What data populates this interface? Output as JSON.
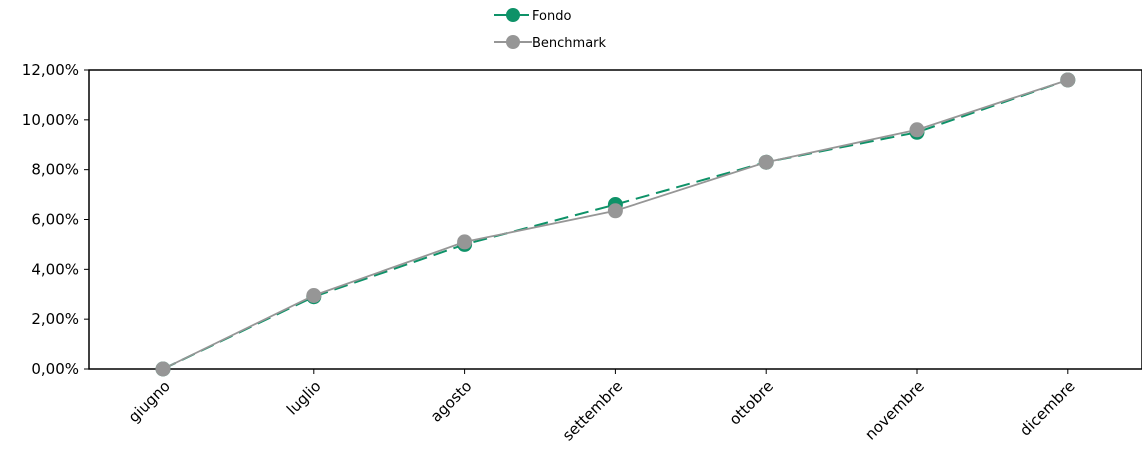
{
  "chart_data": {
    "type": "line",
    "categories": [
      "giugno",
      "luglio",
      "agosto",
      "settembre",
      "ottobre",
      "novembre",
      "dicembre"
    ],
    "series": [
      {
        "name": "Fondo",
        "values": [
          0.0,
          2.9,
          5.0,
          6.6,
          8.3,
          9.5,
          11.6
        ],
        "color": "#0E9268",
        "style": "dashed"
      },
      {
        "name": "Benchmark",
        "values": [
          0.0,
          2.95,
          5.1,
          6.35,
          8.3,
          9.6,
          11.6
        ],
        "color": "#969696",
        "style": "solid"
      }
    ],
    "y_ticks": [
      "0,00%",
      "2,00%",
      "4,00%",
      "6,00%",
      "8,00%",
      "10,00%",
      "12,00%"
    ],
    "ylim": [
      0,
      12
    ],
    "grid": false,
    "legend": "top-center"
  }
}
